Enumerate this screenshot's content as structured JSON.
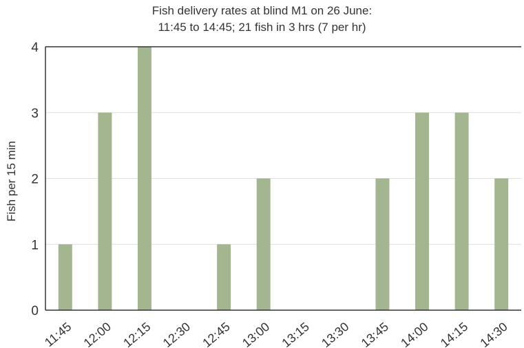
{
  "chart_data": {
    "type": "bar",
    "title": "Fish delivery rates at blind M1 on 26 June:",
    "subtitle": "11:45 to 14:45; 21 fish in 3 hrs (7 per hr)",
    "xlabel": "",
    "ylabel": "Fish per 15 min",
    "ylim": [
      0,
      4
    ],
    "yticks": [
      0,
      1,
      2,
      3,
      4
    ],
    "grid": true,
    "categories": [
      "11:45",
      "12:00",
      "12:15",
      "12:30",
      "12:45",
      "13:00",
      "13:15",
      "13:30",
      "13:45",
      "14:00",
      "14:15",
      "14:30"
    ],
    "values": [
      1,
      3,
      4,
      0,
      1,
      2,
      0,
      0,
      2,
      3,
      3,
      2
    ],
    "colors": {
      "bar": "#a3b68f",
      "grid": "#dddddd",
      "axis": "#333333",
      "text": "#333333"
    }
  }
}
